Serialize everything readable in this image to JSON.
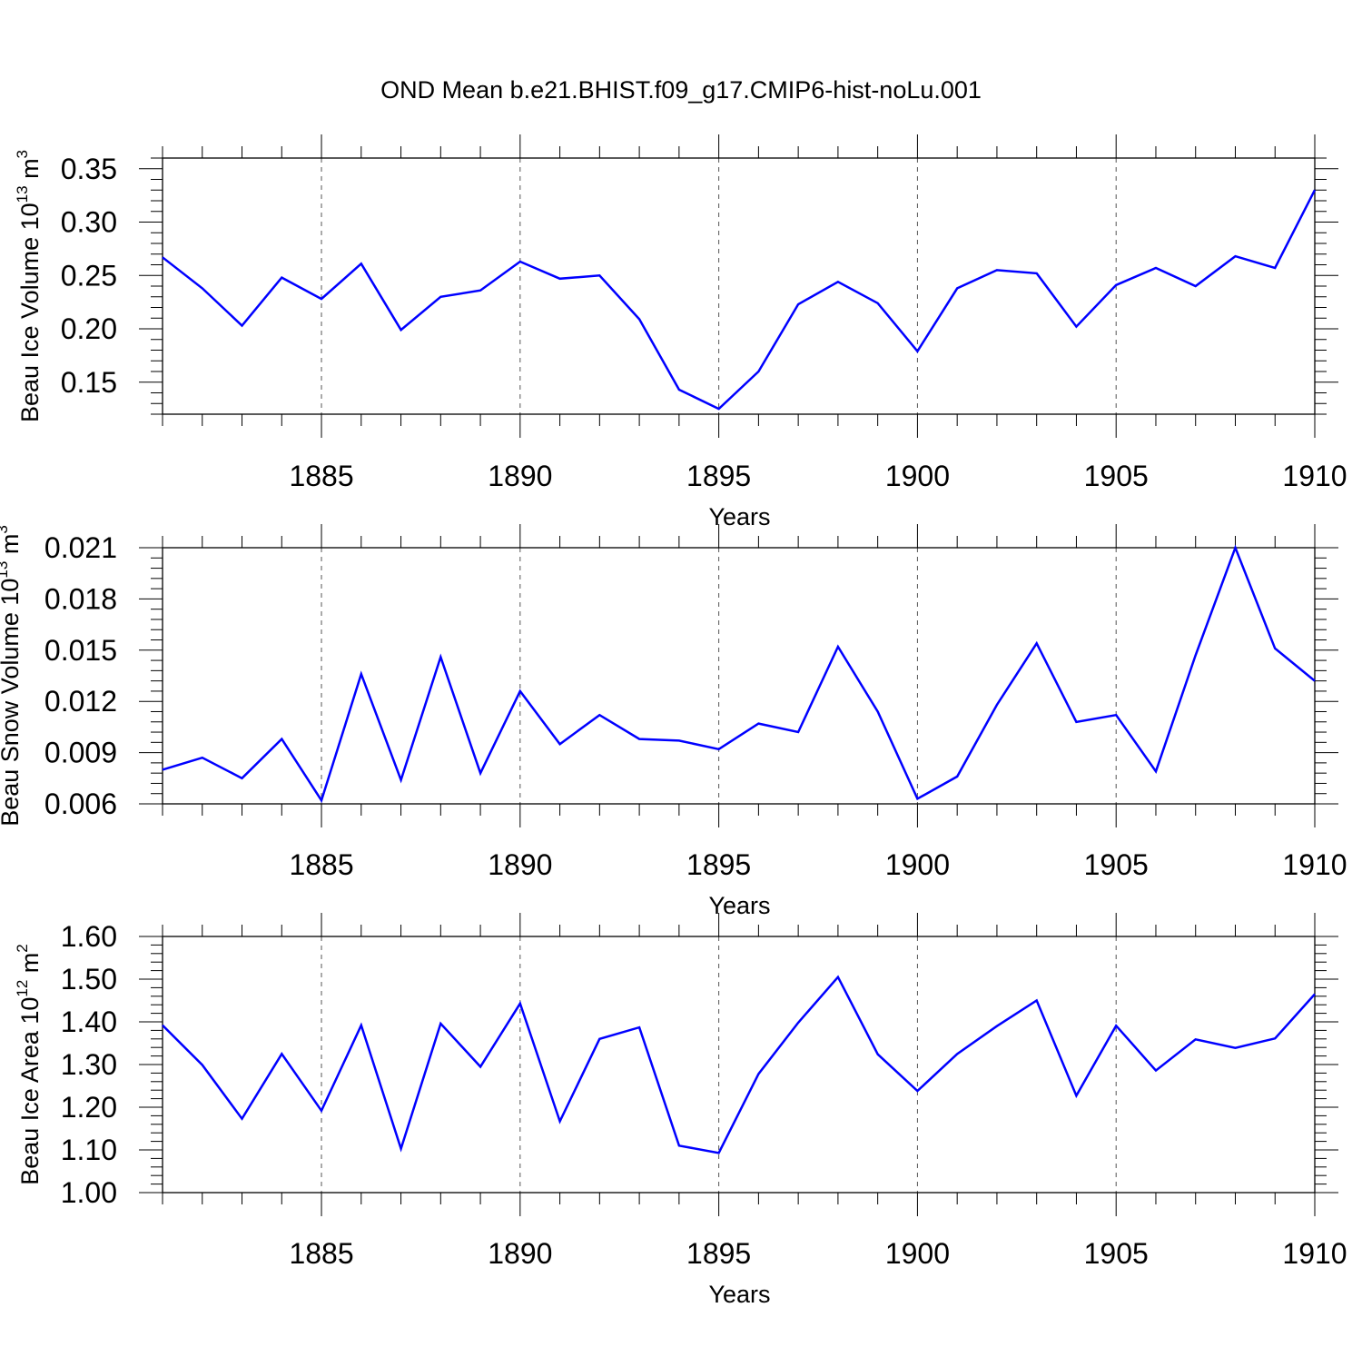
{
  "figure": {
    "title": "OND Mean b.e21.BHIST.f09_g17.CMIP6-hist-noLu.001",
    "line_color": "#0000ff"
  },
  "chart_data": [
    {
      "type": "line",
      "title": "",
      "xlabel": "Years",
      "ylabel": "Beau Ice Volume 10",
      "ylabel_exp": "13",
      "ylabel_unit": "m",
      "ylabel_unit_exp": "3",
      "xlim": [
        1881,
        1910
      ],
      "ylim": [
        0.12,
        0.36
      ],
      "xticks": [
        1885,
        1890,
        1895,
        1900,
        1905,
        1910
      ],
      "xtick_labels": [
        "1885",
        "1890",
        "1895",
        "1900",
        "1905",
        "1910"
      ],
      "yticks": [
        0.15,
        0.2,
        0.25,
        0.3,
        0.35
      ],
      "ytick_labels": [
        "0.15",
        "0.20",
        "0.25",
        "0.30",
        "0.35"
      ],
      "x": [
        1881,
        1882,
        1883,
        1884,
        1885,
        1886,
        1887,
        1888,
        1889,
        1890,
        1891,
        1892,
        1893,
        1894,
        1895,
        1896,
        1897,
        1898,
        1899,
        1900,
        1901,
        1902,
        1903,
        1904,
        1905,
        1906,
        1907,
        1908,
        1909,
        1910
      ],
      "series": [
        {
          "values": [
            0.267,
            0.238,
            0.203,
            0.248,
            0.228,
            0.261,
            0.199,
            0.23,
            0.236,
            0.263,
            0.247,
            0.25,
            0.209,
            0.143,
            0.125,
            0.16,
            0.223,
            0.244,
            0.224,
            0.179,
            0.238,
            0.255,
            0.252,
            0.202,
            0.241,
            0.257,
            0.24,
            0.268,
            0.257,
            0.33
          ]
        }
      ],
      "grid": "vertical dashed at major x ticks"
    },
    {
      "type": "line",
      "title": "",
      "xlabel": "Years",
      "ylabel": "Beau Snow Volume 10",
      "ylabel_exp": "13",
      "ylabel_unit": "m",
      "ylabel_unit_exp": "3",
      "xlim": [
        1881,
        1910
      ],
      "ylim": [
        0.006,
        0.021
      ],
      "xticks": [
        1885,
        1890,
        1895,
        1900,
        1905,
        1910
      ],
      "xtick_labels": [
        "1885",
        "1890",
        "1895",
        "1900",
        "1905",
        "1910"
      ],
      "yticks": [
        0.006,
        0.009,
        0.012,
        0.015,
        0.018,
        0.021
      ],
      "ytick_labels": [
        "0.006",
        "0.009",
        "0.012",
        "0.015",
        "0.018",
        "0.021"
      ],
      "x": [
        1881,
        1882,
        1883,
        1884,
        1885,
        1886,
        1887,
        1888,
        1889,
        1890,
        1891,
        1892,
        1893,
        1894,
        1895,
        1896,
        1897,
        1898,
        1899,
        1900,
        1901,
        1902,
        1903,
        1904,
        1905,
        1906,
        1907,
        1908,
        1909,
        1910
      ],
      "series": [
        {
          "values": [
            0.008,
            0.0087,
            0.0075,
            0.0098,
            0.0062,
            0.0136,
            0.0074,
            0.0146,
            0.0078,
            0.0126,
            0.0095,
            0.0112,
            0.0098,
            0.0097,
            0.0092,
            0.0107,
            0.0102,
            0.0152,
            0.0114,
            0.0063,
            0.0076,
            0.0118,
            0.0154,
            0.0108,
            0.0112,
            0.0079,
            0.0147,
            0.021,
            0.0151,
            0.0132
          ]
        }
      ],
      "grid": "vertical dashed at major x ticks"
    },
    {
      "type": "line",
      "title": "",
      "xlabel": "Years",
      "ylabel": "Beau Ice Area 10",
      "ylabel_exp": "12",
      "ylabel_unit": "m",
      "ylabel_unit_exp": "2",
      "xlim": [
        1881,
        1910
      ],
      "ylim": [
        1.0,
        1.6
      ],
      "xticks": [
        1885,
        1890,
        1895,
        1900,
        1905,
        1910
      ],
      "xtick_labels": [
        "1885",
        "1890",
        "1895",
        "1900",
        "1905",
        "1910"
      ],
      "yticks": [
        1.0,
        1.1,
        1.2,
        1.3,
        1.4,
        1.5,
        1.6
      ],
      "ytick_labels": [
        "1.00",
        "1.10",
        "1.20",
        "1.30",
        "1.40",
        "1.50",
        "1.60"
      ],
      "x": [
        1881,
        1882,
        1883,
        1884,
        1885,
        1886,
        1887,
        1888,
        1889,
        1890,
        1891,
        1892,
        1893,
        1894,
        1895,
        1896,
        1897,
        1898,
        1899,
        1900,
        1901,
        1902,
        1903,
        1904,
        1905,
        1906,
        1907,
        1908,
        1909,
        1910
      ],
      "series": [
        {
          "values": [
            1.392,
            1.299,
            1.173,
            1.325,
            1.192,
            1.392,
            1.103,
            1.396,
            1.295,
            1.443,
            1.167,
            1.36,
            1.387,
            1.11,
            1.093,
            1.278,
            1.398,
            1.505,
            1.324,
            1.238,
            1.325,
            1.39,
            1.45,
            1.227,
            1.391,
            1.286,
            1.359,
            1.339,
            1.361,
            1.465
          ]
        }
      ],
      "grid": "vertical dashed at major x ticks"
    }
  ]
}
